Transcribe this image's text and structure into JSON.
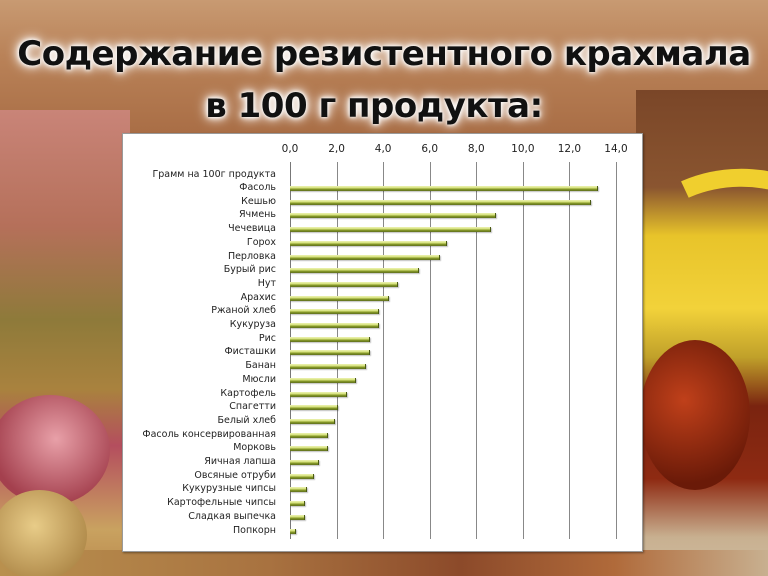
{
  "title": {
    "line1": "Содержание резистентного крахмала",
    "line2": "в 100 г продукта:"
  },
  "colors": {
    "bar_light": "#e4eca0",
    "bar_dark": "#6e7e22",
    "panel_bg": "#ffffff",
    "gridline": "#888888",
    "title_text": "#111111"
  },
  "chart_data": {
    "type": "bar",
    "orientation": "horizontal",
    "title": "Содержание резистентного крахмала в 100 г продукта:",
    "series_name": "Грамм на 100г продукта",
    "xlabel": "",
    "ylabel": "",
    "xlim": [
      0,
      14
    ],
    "x_ticks": [
      "0,0",
      "2,0",
      "4,0",
      "6,0",
      "8,0",
      "10,0",
      "12,0",
      "14,0"
    ],
    "x_axis_position": "top",
    "grid": true,
    "legend": "none",
    "categories": [
      "Фасоль",
      "Кешью",
      "Ячмень",
      "Чечевица",
      "Горох",
      "Перловка",
      "Бурый рис",
      "Нут",
      "Арахис",
      "Ржаной хлеб",
      "Кукуруза",
      "Рис",
      "Фисташки",
      "Банан",
      "Мюсли",
      "Картофель",
      "Спагетти",
      "Белый хлеб",
      "Фасоль консервированная",
      "Морковь",
      "Яичная лапша",
      "Овсяные отруби",
      "Кукурузные чипсы",
      "Картофельные чипсы",
      "Сладкая выпечка",
      "Попкорн"
    ],
    "values": [
      13.2,
      12.9,
      8.8,
      8.6,
      6.7,
      6.4,
      5.5,
      4.6,
      4.2,
      3.8,
      3.8,
      3.4,
      3.4,
      3.2,
      2.8,
      2.4,
      2.0,
      1.9,
      1.6,
      1.6,
      1.2,
      1.0,
      0.7,
      0.6,
      0.6,
      0.2
    ]
  }
}
